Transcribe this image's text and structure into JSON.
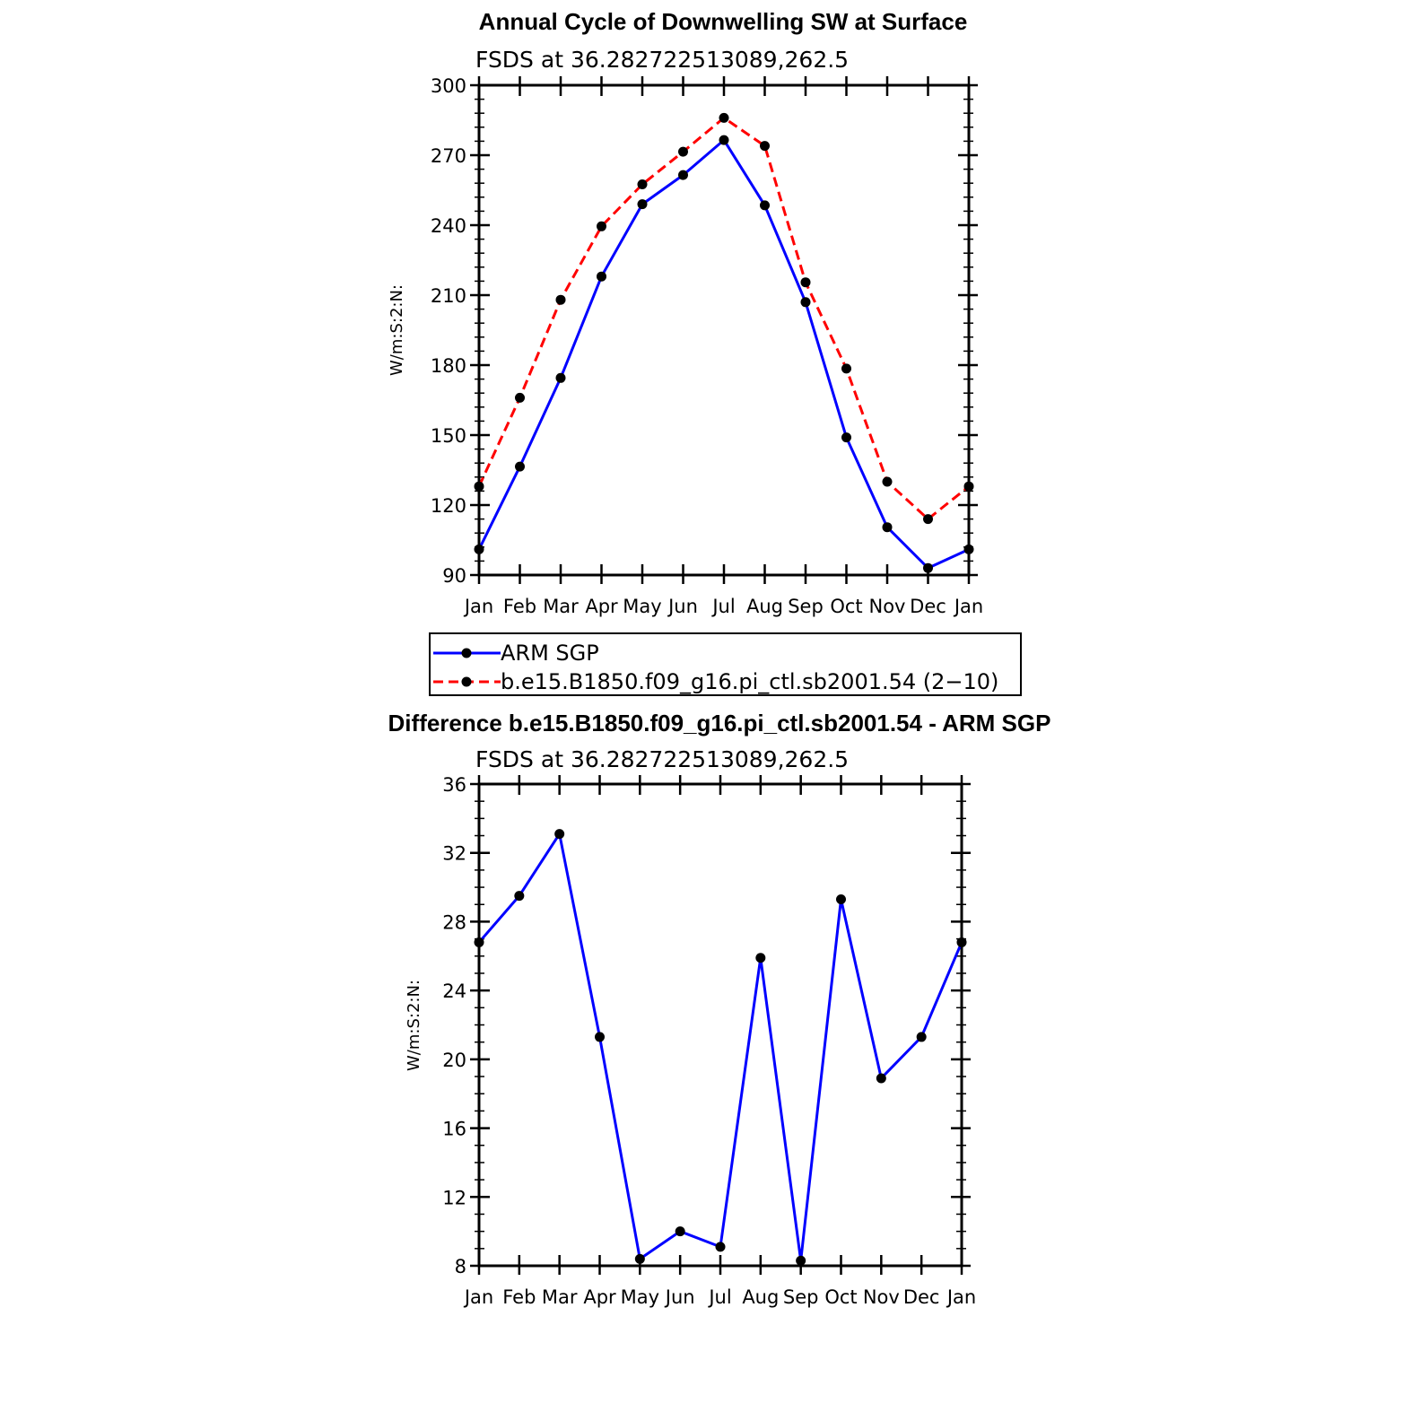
{
  "chart_data": [
    {
      "type": "line",
      "title": "Annual Cycle of Downwelling SW at Surface",
      "subtitle": "FSDS at 36.282722513089,262.5",
      "ylabel": "W/m:S:2:N:",
      "xlabel": "",
      "categories": [
        "Jan",
        "Feb",
        "Mar",
        "Apr",
        "May",
        "Jun",
        "Jul",
        "Aug",
        "Sep",
        "Oct",
        "Nov",
        "Dec",
        "Jan"
      ],
      "ylim": [
        90,
        300
      ],
      "yticks": [
        90,
        120,
        150,
        180,
        210,
        240,
        270,
        300
      ],
      "grid": false,
      "legend_position": "below",
      "series": [
        {
          "name": "ARM SGP",
          "color": "#0000ff",
          "dash": "solid",
          "values": [
            101,
            136.5,
            174.5,
            218,
            249,
            261.5,
            276.5,
            248.5,
            207,
            149,
            110.5,
            93,
            101
          ]
        },
        {
          "name": "b.e15.B1850.f09_g16.pi_ctl.sb2001.54 (2−10)",
          "color": "#ff0000",
          "dash": "dashed",
          "values": [
            128,
            166,
            208,
            239.5,
            257.5,
            271.5,
            286,
            274,
            215.5,
            178.5,
            130,
            114,
            128
          ]
        }
      ]
    },
    {
      "type": "line",
      "title": "Difference b.e15.B1850.f09_g16.pi_ctl.sb2001.54 - ARM SGP",
      "subtitle": "FSDS at 36.282722513089,262.5",
      "ylabel": "W/m:S:2:N:",
      "xlabel": "",
      "categories": [
        "Jan",
        "Feb",
        "Mar",
        "Apr",
        "May",
        "Jun",
        "Jul",
        "Aug",
        "Sep",
        "Oct",
        "Nov",
        "Dec",
        "Jan"
      ],
      "ylim": [
        8,
        36
      ],
      "yticks": [
        8,
        12,
        16,
        20,
        24,
        28,
        32,
        36
      ],
      "grid": false,
      "series": [
        {
          "color": "#0000ff",
          "dash": "solid",
          "values": [
            26.8,
            29.5,
            33.1,
            21.3,
            8.4,
            10,
            9.1,
            25.9,
            8.3,
            29.3,
            18.9,
            21.3,
            26.8
          ]
        }
      ]
    }
  ]
}
